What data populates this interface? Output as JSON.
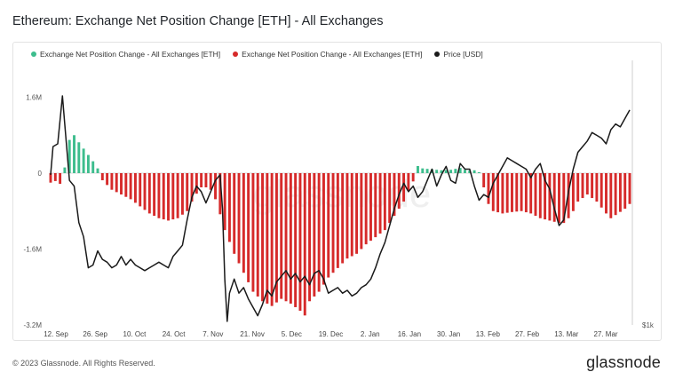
{
  "title": "Ethereum: Exchange Net Position Change [ETH] - All Exchanges",
  "footer": "© 2023 Glassnode. All Rights Reserved.",
  "brand": "glassnode",
  "watermark": "glassnode",
  "colors": {
    "positive": "#3dbd8d",
    "negative": "#d62a2a",
    "price": "#1a1a1a",
    "grid": "#eeeeee"
  },
  "legend": [
    {
      "label": "Exchange Net Position Change - All Exchanges [ETH]",
      "color": "#3dbd8d"
    },
    {
      "label": "Exchange Net Position Change - All Exchanges [ETH]",
      "color": "#d62a2a"
    },
    {
      "label": "Price [USD]",
      "color": "#1a1a1a"
    }
  ],
  "chart_data": {
    "type": "bar",
    "y_ticks": [
      "1.6M",
      "0",
      "-1.6M",
      "-3.2M"
    ],
    "y_tick_values": [
      1600000,
      0,
      -1600000,
      -3200000
    ],
    "ylim": [
      -3200000,
      2200000
    ],
    "right_axis_label": "$1k",
    "x_tick_labels": [
      "12. Sep",
      "26. Sep",
      "10. Oct",
      "24. Oct",
      "7. Nov",
      "21. Nov",
      "5. Dec",
      "19. Dec",
      "2. Jan",
      "16. Jan",
      "30. Jan",
      "13. Feb",
      "27. Feb",
      "13. Mar",
      "27. Mar"
    ],
    "bar_step_days": 2,
    "net_position_keyframes_eth": [
      [
        0,
        -200000
      ],
      [
        3,
        -150000
      ],
      [
        5,
        -300000
      ],
      [
        6,
        120000
      ],
      [
        8,
        700000
      ],
      [
        10,
        800000
      ],
      [
        12,
        650000
      ],
      [
        15,
        450000
      ],
      [
        18,
        250000
      ],
      [
        20,
        100000
      ],
      [
        21,
        0
      ],
      [
        22,
        -150000
      ],
      [
        26,
        -350000
      ],
      [
        30,
        -450000
      ],
      [
        34,
        -550000
      ],
      [
        38,
        -700000
      ],
      [
        42,
        -850000
      ],
      [
        46,
        -950000
      ],
      [
        50,
        -1000000
      ],
      [
        54,
        -950000
      ],
      [
        58,
        -800000
      ],
      [
        61,
        -500000
      ],
      [
        64,
        -300000
      ],
      [
        67,
        -300000
      ],
      [
        69,
        -400000
      ],
      [
        71,
        -700000
      ],
      [
        74,
        -1200000
      ],
      [
        78,
        -1700000
      ],
      [
        82,
        -2100000
      ],
      [
        86,
        -2500000
      ],
      [
        90,
        -2700000
      ],
      [
        94,
        -2800000
      ],
      [
        98,
        -2650000
      ],
      [
        102,
        -2750000
      ],
      [
        106,
        -2900000
      ],
      [
        108,
        -3000000
      ],
      [
        110,
        -2700000
      ],
      [
        114,
        -2500000
      ],
      [
        118,
        -2200000
      ],
      [
        122,
        -2000000
      ],
      [
        126,
        -1800000
      ],
      [
        130,
        -1700000
      ],
      [
        134,
        -1500000
      ],
      [
        138,
        -1350000
      ],
      [
        142,
        -1200000
      ],
      [
        146,
        -900000
      ],
      [
        150,
        -600000
      ],
      [
        153,
        -250000
      ],
      [
        155,
        -100000
      ],
      [
        156,
        150000
      ],
      [
        158,
        100000
      ],
      [
        162,
        80000
      ],
      [
        166,
        60000
      ],
      [
        170,
        70000
      ],
      [
        174,
        110000
      ],
      [
        177,
        50000
      ],
      [
        180,
        60000
      ],
      [
        182,
        20000
      ],
      [
        184,
        -300000
      ],
      [
        186,
        -650000
      ],
      [
        188,
        -800000
      ],
      [
        192,
        -850000
      ],
      [
        196,
        -820000
      ],
      [
        200,
        -800000
      ],
      [
        204,
        -850000
      ],
      [
        208,
        -950000
      ],
      [
        212,
        -1000000
      ],
      [
        216,
        -1050000
      ],
      [
        218,
        -1050000
      ],
      [
        221,
        -900000
      ],
      [
        224,
        -600000
      ],
      [
        228,
        -450000
      ],
      [
        232,
        -600000
      ],
      [
        236,
        -850000
      ],
      [
        238,
        -950000
      ],
      [
        241,
        -850000
      ],
      [
        244,
        -750000
      ],
      [
        246,
        -650000
      ]
    ],
    "price_usd_keyframes": [
      [
        0,
        1620
      ],
      [
        1,
        1720
      ],
      [
        3,
        1730
      ],
      [
        5,
        1900
      ],
      [
        6,
        1800
      ],
      [
        8,
        1600
      ],
      [
        10,
        1580
      ],
      [
        12,
        1450
      ],
      [
        14,
        1400
      ],
      [
        16,
        1290
      ],
      [
        18,
        1300
      ],
      [
        20,
        1350
      ],
      [
        22,
        1320
      ],
      [
        24,
        1310
      ],
      [
        26,
        1290
      ],
      [
        28,
        1300
      ],
      [
        30,
        1330
      ],
      [
        32,
        1300
      ],
      [
        34,
        1320
      ],
      [
        36,
        1300
      ],
      [
        38,
        1290
      ],
      [
        40,
        1280
      ],
      [
        42,
        1290
      ],
      [
        44,
        1300
      ],
      [
        46,
        1310
      ],
      [
        48,
        1300
      ],
      [
        50,
        1290
      ],
      [
        52,
        1330
      ],
      [
        54,
        1350
      ],
      [
        56,
        1370
      ],
      [
        58,
        1460
      ],
      [
        60,
        1540
      ],
      [
        62,
        1580
      ],
      [
        64,
        1560
      ],
      [
        66,
        1520
      ],
      [
        68,
        1560
      ],
      [
        70,
        1600
      ],
      [
        72,
        1620
      ],
      [
        73,
        1500
      ],
      [
        74,
        1250
      ],
      [
        75,
        1100
      ],
      [
        76,
        1200
      ],
      [
        78,
        1250
      ],
      [
        80,
        1200
      ],
      [
        82,
        1220
      ],
      [
        84,
        1180
      ],
      [
        86,
        1150
      ],
      [
        88,
        1120
      ],
      [
        90,
        1160
      ],
      [
        92,
        1210
      ],
      [
        94,
        1190
      ],
      [
        96,
        1240
      ],
      [
        98,
        1260
      ],
      [
        100,
        1280
      ],
      [
        102,
        1250
      ],
      [
        104,
        1270
      ],
      [
        106,
        1240
      ],
      [
        108,
        1260
      ],
      [
        110,
        1230
      ],
      [
        112,
        1270
      ],
      [
        114,
        1280
      ],
      [
        116,
        1250
      ],
      [
        118,
        1200
      ],
      [
        120,
        1210
      ],
      [
        122,
        1220
      ],
      [
        124,
        1200
      ],
      [
        126,
        1210
      ],
      [
        128,
        1190
      ],
      [
        130,
        1200
      ],
      [
        132,
        1220
      ],
      [
        134,
        1230
      ],
      [
        136,
        1250
      ],
      [
        138,
        1290
      ],
      [
        140,
        1340
      ],
      [
        142,
        1380
      ],
      [
        144,
        1440
      ],
      [
        146,
        1500
      ],
      [
        148,
        1550
      ],
      [
        150,
        1590
      ],
      [
        152,
        1560
      ],
      [
        154,
        1580
      ],
      [
        156,
        1540
      ],
      [
        158,
        1560
      ],
      [
        160,
        1600
      ],
      [
        162,
        1640
      ],
      [
        164,
        1580
      ],
      [
        166,
        1620
      ],
      [
        168,
        1650
      ],
      [
        170,
        1600
      ],
      [
        172,
        1590
      ],
      [
        174,
        1660
      ],
      [
        176,
        1640
      ],
      [
        178,
        1640
      ],
      [
        180,
        1580
      ],
      [
        182,
        1530
      ],
      [
        184,
        1550
      ],
      [
        186,
        1540
      ],
      [
        188,
        1590
      ],
      [
        190,
        1620
      ],
      [
        192,
        1650
      ],
      [
        194,
        1680
      ],
      [
        196,
        1670
      ],
      [
        198,
        1660
      ],
      [
        200,
        1650
      ],
      [
        202,
        1640
      ],
      [
        204,
        1610
      ],
      [
        206,
        1640
      ],
      [
        208,
        1660
      ],
      [
        210,
        1600
      ],
      [
        212,
        1570
      ],
      [
        214,
        1500
      ],
      [
        216,
        1440
      ],
      [
        218,
        1460
      ],
      [
        220,
        1560
      ],
      [
        222,
        1640
      ],
      [
        224,
        1700
      ],
      [
        226,
        1720
      ],
      [
        228,
        1740
      ],
      [
        230,
        1770
      ],
      [
        232,
        1760
      ],
      [
        234,
        1750
      ],
      [
        236,
        1730
      ],
      [
        238,
        1780
      ],
      [
        240,
        1800
      ],
      [
        242,
        1790
      ],
      [
        244,
        1820
      ],
      [
        246,
        1850
      ]
    ],
    "price_range_usd": [
      1040,
      1900
    ]
  }
}
